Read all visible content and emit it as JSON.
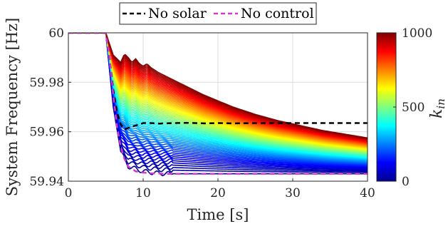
{
  "chart_data": {
    "type": "line",
    "title": "",
    "xlabel": "Time [s]",
    "ylabel": "System Frequency [Hz]",
    "xlim": [
      0,
      40
    ],
    "ylim": [
      59.94,
      60.0
    ],
    "xticks": [
      "0",
      "10",
      "20",
      "30",
      "40"
    ],
    "yticks": [
      "59.94",
      "59.96",
      "59.98",
      "60"
    ],
    "grid": true,
    "legend_position": "top-center",
    "series": [
      {
        "name": "No solar",
        "color": "#000000",
        "dash": "dashed",
        "x": [
          0,
          5,
          5.5,
          6,
          6.5,
          7,
          7.5,
          8,
          8.5,
          9,
          10,
          11,
          12,
          14,
          16,
          18,
          20,
          22,
          25,
          28,
          31,
          34,
          37,
          40
        ],
        "y": [
          60.0,
          60.0,
          59.99,
          59.977,
          59.968,
          59.963,
          59.961,
          59.9615,
          59.962,
          59.9625,
          59.9635,
          59.9635,
          59.9633,
          59.9635,
          59.9636,
          59.9634,
          59.9635,
          59.9634,
          59.9635,
          59.9635,
          59.9635,
          59.9635,
          59.9635,
          59.9635
        ]
      },
      {
        "name": "No control",
        "color": "#cc3dcc",
        "dash": "dashed",
        "x": [
          0,
          5,
          5.5,
          6,
          6.5,
          7,
          7.5,
          8,
          9,
          10,
          11,
          12,
          13,
          15,
          20,
          25,
          30,
          35,
          40
        ],
        "y": [
          60.0,
          60.0,
          59.99,
          59.975,
          59.962,
          59.954,
          59.949,
          59.946,
          59.944,
          59.9435,
          59.9432,
          59.9431,
          59.943,
          59.943,
          59.943,
          59.943,
          59.943,
          59.943,
          59.943
        ]
      }
    ],
    "family": {
      "parameter": "k_in",
      "range": [
        0,
        1000
      ],
      "count": 60,
      "description_envelope": {
        "k_in_0": {
          "x": [
            0,
            5,
            6,
            7,
            8,
            10,
            12,
            14,
            40
          ],
          "y": [
            60.0,
            60.0,
            59.97,
            59.952,
            59.946,
            59.944,
            59.9432,
            59.943,
            59.943
          ]
        },
        "k_in_1000": {
          "x": [
            0,
            5,
            5.5,
            6,
            6.5,
            7,
            7.5,
            8,
            8.5,
            9,
            9.5,
            10,
            10.5,
            11,
            12,
            14,
            16,
            18,
            20,
            22,
            25,
            28,
            31,
            34,
            37,
            40
          ],
          "y": [
            60.0,
            60.0,
            59.9955,
            59.991,
            59.9895,
            59.988,
            59.9915,
            59.99,
            59.988,
            59.9895,
            59.9875,
            59.9865,
            59.9875,
            59.986,
            59.984,
            59.981,
            59.978,
            59.975,
            59.9725,
            59.97,
            59.967,
            59.9645,
            59.9625,
            59.9605,
            59.959,
            59.9575
          ]
        }
      }
    },
    "colorbar": {
      "label": "k",
      "label_sub": "in",
      "ticks": [
        "0",
        "500",
        "1000"
      ],
      "colormap": "jet"
    }
  }
}
